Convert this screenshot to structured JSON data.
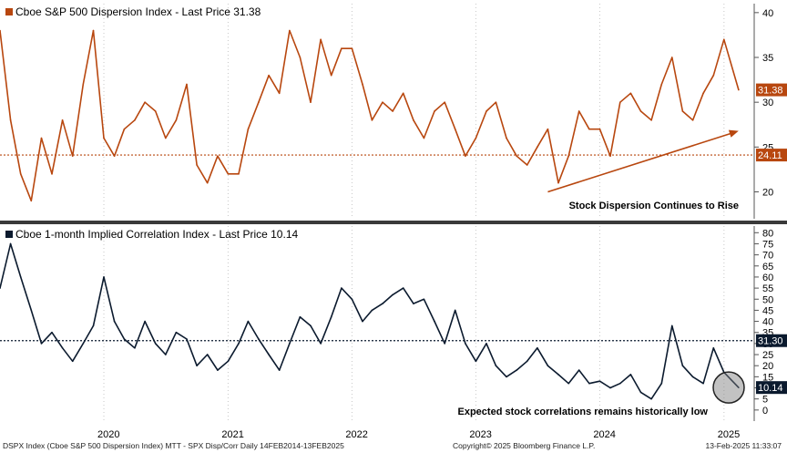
{
  "chart_data": [
    {
      "type": "line",
      "title": "Cboe S&P 500 Dispersion Index - Last Price 31.38",
      "series": [
        {
          "name": "Cboe S&P 500 Dispersion Index",
          "color": "#B8470F",
          "x": [
            "2019-03-01",
            "2019-04-01",
            "2019-05-01",
            "2019-06-01",
            "2019-07-01",
            "2019-08-01",
            "2019-09-01",
            "2019-10-01",
            "2019-11-01",
            "2019-12-01",
            "2020-01-01",
            "2020-02-01",
            "2020-03-01",
            "2020-04-01",
            "2020-05-01",
            "2020-06-01",
            "2020-07-01",
            "2020-08-01",
            "2020-09-01",
            "2020-10-01",
            "2020-11-01",
            "2020-12-01",
            "2021-01-01",
            "2021-02-01",
            "2021-03-01",
            "2021-04-01",
            "2021-05-01",
            "2021-06-01",
            "2021-07-01",
            "2021-08-01",
            "2021-09-01",
            "2021-10-01",
            "2021-11-01",
            "2021-12-01",
            "2022-01-01",
            "2022-02-01",
            "2022-03-01",
            "2022-04-01",
            "2022-05-01",
            "2022-06-01",
            "2022-07-01",
            "2022-08-01",
            "2022-09-01",
            "2022-10-01",
            "2022-11-01",
            "2022-12-01",
            "2023-01-01",
            "2023-02-01",
            "2023-03-01",
            "2023-04-01",
            "2023-05-01",
            "2023-06-01",
            "2023-07-01",
            "2023-08-01",
            "2023-09-01",
            "2023-10-01",
            "2023-11-01",
            "2023-12-01",
            "2024-01-01",
            "2024-02-01",
            "2024-03-01",
            "2024-04-01",
            "2024-05-01",
            "2024-06-01",
            "2024-07-01",
            "2024-08-01",
            "2024-09-01",
            "2024-10-01",
            "2024-11-01",
            "2024-12-01",
            "2025-01-01",
            "2025-02-13"
          ],
          "values": [
            38,
            28,
            22,
            19,
            26,
            22,
            28,
            24,
            32,
            38,
            26,
            24,
            27,
            28,
            30,
            29,
            26,
            28,
            32,
            23,
            21,
            24,
            22,
            22,
            27,
            30,
            33,
            31,
            38,
            35,
            30,
            37,
            33,
            36,
            36,
            32,
            28,
            30,
            29,
            31,
            28,
            26,
            29,
            30,
            27,
            24,
            26,
            29,
            30,
            26,
            24,
            23,
            25,
            27,
            21,
            24,
            29,
            27,
            27,
            24,
            30,
            31,
            29,
            28,
            32,
            35,
            29,
            28,
            31,
            33,
            37,
            31.38
          ]
        }
      ],
      "reference_lines": [
        {
          "value": 24.11,
          "label": "24.11",
          "color": "#B8470F"
        }
      ],
      "last_value": {
        "value": 31.38,
        "label": "31.38"
      },
      "ylim": [
        17,
        41
      ],
      "yticks": [
        20,
        25,
        30,
        35,
        40
      ],
      "ytick_labels": [
        "20",
        "25",
        "30",
        "35",
        "40"
      ],
      "annotation": {
        "text": "Stock Dispersion Continues to Rise",
        "arrow_from": [
          "2023-08-01",
          20
        ],
        "arrow_to": [
          "2025-02-13",
          26.8
        ]
      }
    },
    {
      "type": "line",
      "title": "Cboe 1-month Implied Correlation Index - Last Price 10.14",
      "series": [
        {
          "name": "Cboe 1-month Implied Correlation Index",
          "color": "#0B1A2E",
          "x": [
            "2019-03-01",
            "2019-04-01",
            "2019-05-01",
            "2019-06-01",
            "2019-07-01",
            "2019-08-01",
            "2019-09-01",
            "2019-10-01",
            "2019-11-01",
            "2019-12-01",
            "2020-01-01",
            "2020-02-01",
            "2020-03-01",
            "2020-04-01",
            "2020-05-01",
            "2020-06-01",
            "2020-07-01",
            "2020-08-01",
            "2020-09-01",
            "2020-10-01",
            "2020-11-01",
            "2020-12-01",
            "2021-01-01",
            "2021-02-01",
            "2021-03-01",
            "2021-04-01",
            "2021-05-01",
            "2021-06-01",
            "2021-07-01",
            "2021-08-01",
            "2021-09-01",
            "2021-10-01",
            "2021-11-01",
            "2021-12-01",
            "2022-01-01",
            "2022-02-01",
            "2022-03-01",
            "2022-04-01",
            "2022-05-01",
            "2022-06-01",
            "2022-07-01",
            "2022-08-01",
            "2022-09-01",
            "2022-10-01",
            "2022-11-01",
            "2022-12-01",
            "2023-01-01",
            "2023-02-01",
            "2023-03-01",
            "2023-04-01",
            "2023-05-01",
            "2023-06-01",
            "2023-07-01",
            "2023-08-01",
            "2023-09-01",
            "2023-10-01",
            "2023-11-01",
            "2023-12-01",
            "2024-01-01",
            "2024-02-01",
            "2024-03-01",
            "2024-04-01",
            "2024-05-01",
            "2024-06-01",
            "2024-07-01",
            "2024-08-01",
            "2024-09-01",
            "2024-10-01",
            "2024-11-01",
            "2024-12-01",
            "2025-01-01",
            "2025-02-13"
          ],
          "values": [
            55,
            75,
            60,
            45,
            30,
            35,
            28,
            22,
            30,
            38,
            60,
            40,
            32,
            28,
            40,
            30,
            25,
            35,
            32,
            20,
            25,
            18,
            22,
            30,
            40,
            32,
            25,
            18,
            30,
            42,
            38,
            30,
            42,
            55,
            50,
            40,
            45,
            48,
            52,
            55,
            48,
            50,
            40,
            30,
            45,
            30,
            22,
            30,
            20,
            15,
            18,
            22,
            28,
            20,
            16,
            12,
            18,
            12,
            13,
            10,
            12,
            16,
            8,
            5,
            12,
            38,
            20,
            15,
            12,
            28,
            17,
            10.14
          ]
        }
      ],
      "reference_lines": [
        {
          "value": 31.3,
          "label": "31.30",
          "color": "#0B1A2E"
        }
      ],
      "last_value": {
        "value": 10.14,
        "label": "10.14"
      },
      "ylim": [
        -5,
        83
      ],
      "yticks": [
        0,
        5,
        10,
        15,
        20,
        25,
        30,
        35,
        40,
        45,
        50,
        55,
        60,
        65,
        70,
        75,
        80
      ],
      "ytick_labels": [
        "0",
        "5",
        "10",
        "15",
        "20",
        "25",
        "30",
        "35",
        "40",
        "45",
        "50",
        "55",
        "60",
        "65",
        "70",
        "75",
        "80"
      ],
      "annotation": {
        "text": "Expected stock correlations remains historically low"
      }
    }
  ],
  "x_axis": {
    "range": [
      "2019-03-01",
      "2025-03-31"
    ],
    "tick_labels": [
      "2020",
      "2021",
      "2022",
      "2023",
      "2024",
      "2025"
    ],
    "tick_dates": [
      "2020-01-01",
      "2021-01-01",
      "2022-01-01",
      "2023-01-01",
      "2024-01-01",
      "2025-01-01"
    ],
    "label_dates": [
      "2020-01-15",
      "2021-01-15",
      "2022-01-15",
      "2023-01-15",
      "2024-01-15",
      "2025-01-15"
    ]
  },
  "footer": {
    "left": "DSPX Index (Cboe S&P 500 Dispersion Index) MTT - SPX Disp/Corr  Daily 14FEB2014-13FEB2025",
    "center": "Copyright© 2025 Bloomberg Finance L.P.",
    "right": "13-Feb-2025 11:33:07"
  }
}
